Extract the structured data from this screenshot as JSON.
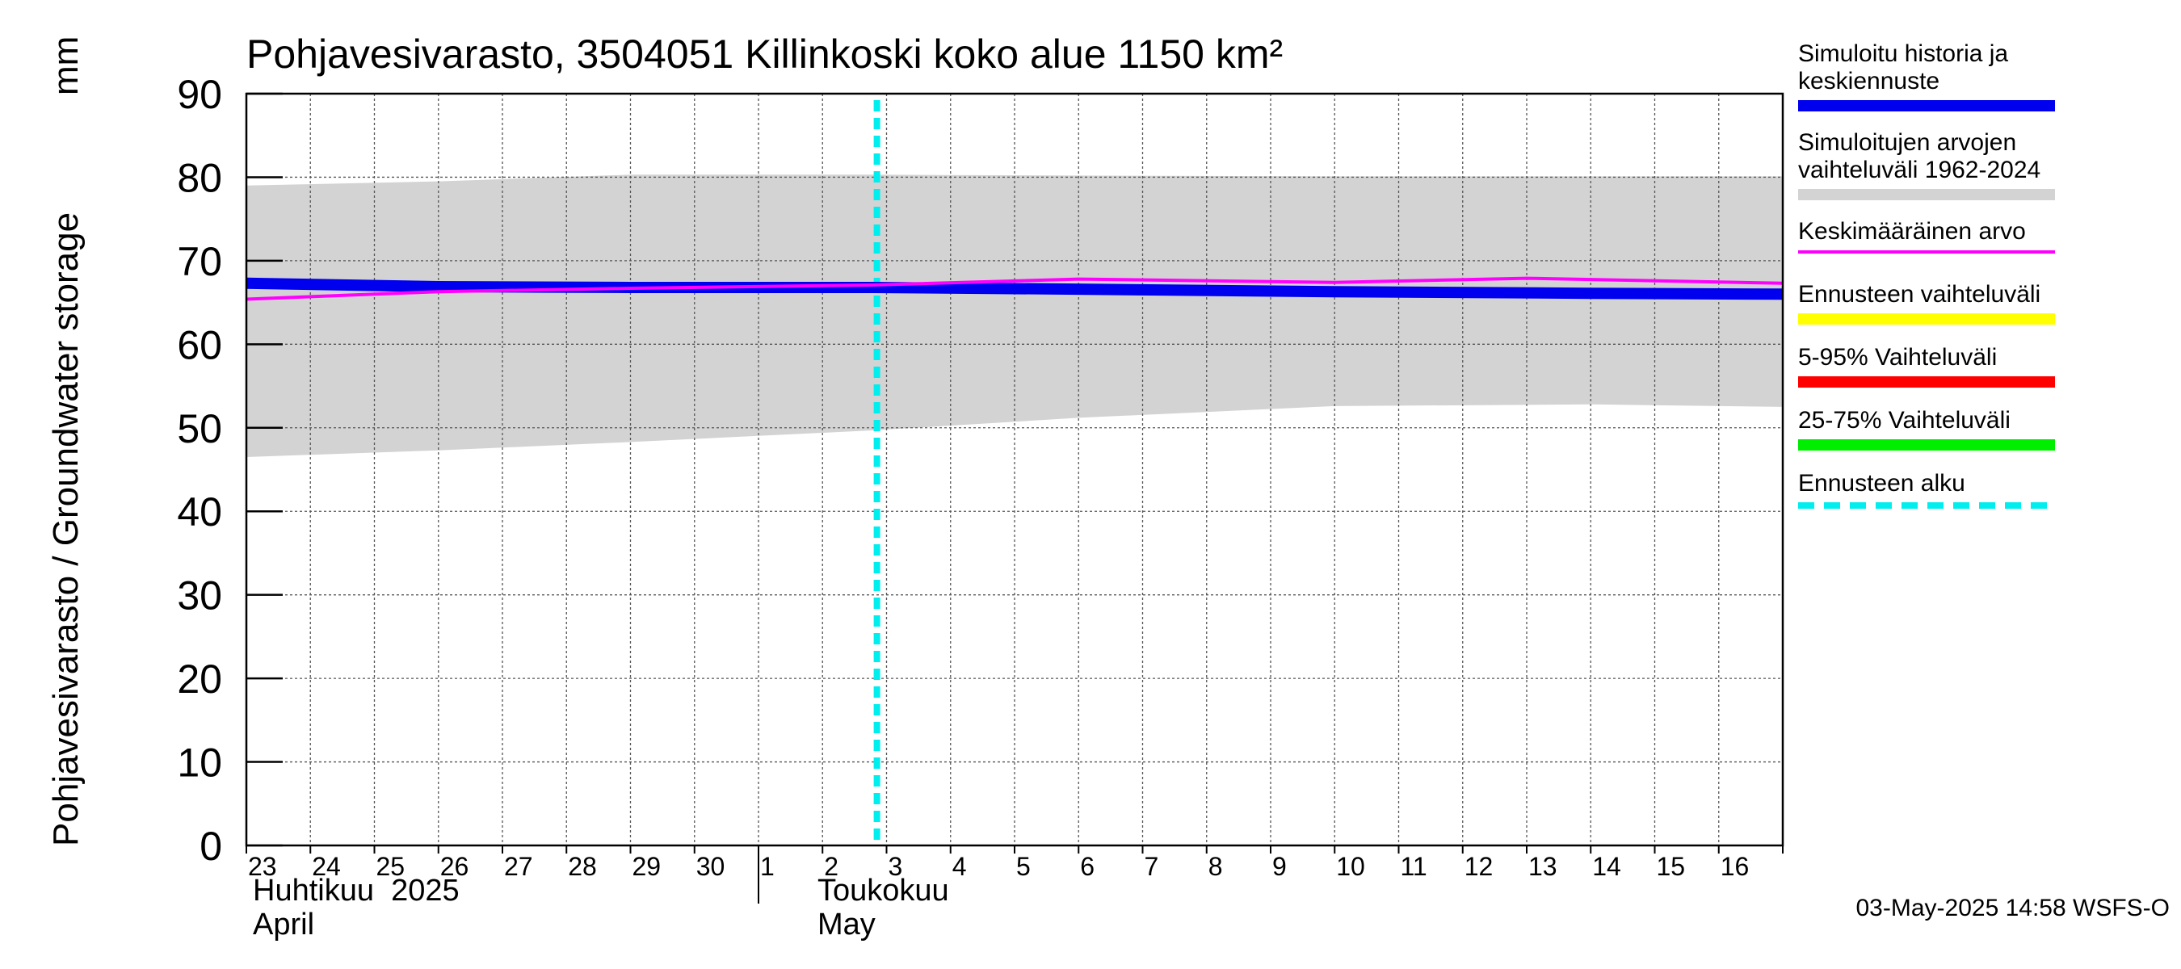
{
  "chart_data": {
    "type": "line",
    "title": "Pohjavesivarasto, 3504051 Killinkoski koko alue 1150 km²",
    "ylabel_left": "Pohjavesivarasto / Groundwater storage",
    "ylabel_unit": "mm",
    "ylim": [
      0,
      90
    ],
    "yticks": [
      0,
      10,
      20,
      30,
      40,
      50,
      60,
      70,
      80,
      90
    ],
    "x_days": [
      "23",
      "24",
      "25",
      "26",
      "27",
      "28",
      "29",
      "30",
      "1",
      "2",
      "3",
      "4",
      "5",
      "6",
      "7",
      "8",
      "9",
      "10",
      "11",
      "12",
      "13",
      "14",
      "15",
      "16"
    ],
    "x_start": "2025-04-23",
    "x_end": "2025-05-17",
    "month_labels": [
      {
        "line1": "Huhtikuu  2025",
        "line2": "April",
        "date": "2025-04-23"
      },
      {
        "line1": "Toukokuu",
        "line2": "May",
        "date": "2025-05-01"
      }
    ],
    "forecast_start": "2025-05-02.85",
    "grid": true,
    "legend_placement": "right",
    "series": [
      {
        "name": "Simuloitujen arvojen vaihteluväli 1962-2024",
        "kind": "band",
        "color": "#d3d3d3",
        "x": [
          "2025-04-23",
          "2025-04-26",
          "2025-04-29",
          "2025-05-02.8",
          "2025-05-06",
          "2025-05-10",
          "2025-05-14",
          "2025-05-17"
        ],
        "low": [
          46.5,
          47.3,
          48.3,
          49.7,
          51.2,
          52.6,
          52.8,
          52.5
        ],
        "high": [
          79,
          79.5,
          80.3,
          80.3,
          80.2,
          80.1,
          80.1,
          80.1
        ]
      },
      {
        "name": "Simuloitu historia ja keskiennuste",
        "kind": "line",
        "color": "#0000ee",
        "x": [
          "2025-04-23",
          "2025-04-26",
          "2025-04-29",
          "2025-05-02.8",
          "2025-05-06",
          "2025-05-10",
          "2025-05-14",
          "2025-05-17"
        ],
        "values": [
          67.3,
          66.9,
          66.8,
          66.8,
          66.6,
          66.3,
          66.1,
          66.0
        ]
      },
      {
        "name": "Keskimääräinen arvo",
        "kind": "line",
        "color": "#ff00ff",
        "x": [
          "2025-04-23",
          "2025-04-26",
          "2025-04-29",
          "2025-05-02.8",
          "2025-05-06",
          "2025-05-10",
          "2025-05-13",
          "2025-05-17"
        ],
        "values": [
          65.4,
          66.3,
          66.7,
          67.1,
          67.8,
          67.4,
          67.9,
          67.3
        ]
      }
    ]
  },
  "legend": [
    {
      "label": "Simuloitu historia ja\nkeskiennuste",
      "color": "#0000ee",
      "style": "solid"
    },
    {
      "label": "Simuloitujen arvojen\nvaihteluväli 1962-2024",
      "color": "#d3d3d3",
      "style": "solid"
    },
    {
      "label": "Keskimääräinen arvo",
      "color": "#ff00ff",
      "style": "thin"
    },
    {
      "label": "Ennusteen vaihteluväli",
      "color": "#ffff00",
      "style": "solid"
    },
    {
      "label": "5-95% Vaihteluväli",
      "color": "#ff0000",
      "style": "solid"
    },
    {
      "label": "25-75% Vaihteluväli",
      "color": "#00ee00",
      "style": "solid"
    },
    {
      "label": "Ennusteen alku",
      "color": "#00eeee",
      "style": "dashed"
    }
  ],
  "footer": "03-May-2025 14:58 WSFS-O"
}
